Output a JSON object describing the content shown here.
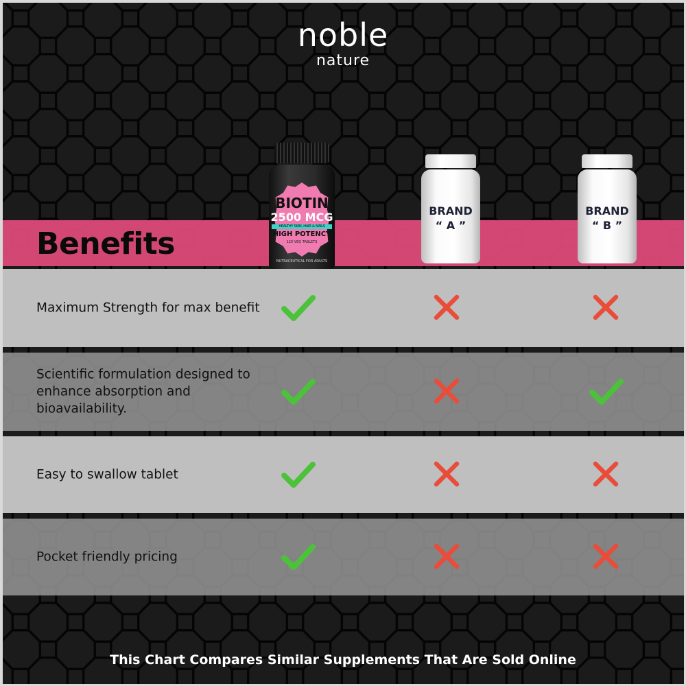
{
  "brand": {
    "name_line1": "noble",
    "name_line2": "nature"
  },
  "header": {
    "title": "Benefits"
  },
  "products": [
    {
      "type": "featured",
      "label_title": "BIOTIN",
      "label_dose": "2500 MCG",
      "label_tagline": "HEALTHY SKIN, HAIR & NAILS",
      "label_potency": "HIGH POTENCY",
      "label_count": "120 VEG TABLETS",
      "label_footer": "NUTRACEUTICAL FOR ADULTS"
    },
    {
      "type": "competitor",
      "label_line1": "BRAND",
      "label_line2": "“ A ”"
    },
    {
      "type": "competitor",
      "label_line1": "BRAND",
      "label_line2": "“ B ”"
    }
  ],
  "rows": [
    {
      "benefit": "Maximum Strength for max benefit",
      "marks": [
        "check",
        "cross",
        "cross"
      ]
    },
    {
      "benefit": "Scientific formulation designed to enhance absorption and bioavailability.",
      "marks": [
        "check",
        "cross",
        "check"
      ]
    },
    {
      "benefit": "Easy to swallow tablet",
      "marks": [
        "check",
        "cross",
        "cross"
      ]
    },
    {
      "benefit": "Pocket friendly pricing",
      "marks": [
        "check",
        "cross",
        "cross"
      ]
    }
  ],
  "footer": {
    "note": "This Chart Compares Similar Supplements That Are Sold Online"
  },
  "colors": {
    "accent_pink": "#de4a7a",
    "check_green": "#4cc23a",
    "cross_red": "#ea4c3a",
    "background": "#1b1b1b"
  }
}
